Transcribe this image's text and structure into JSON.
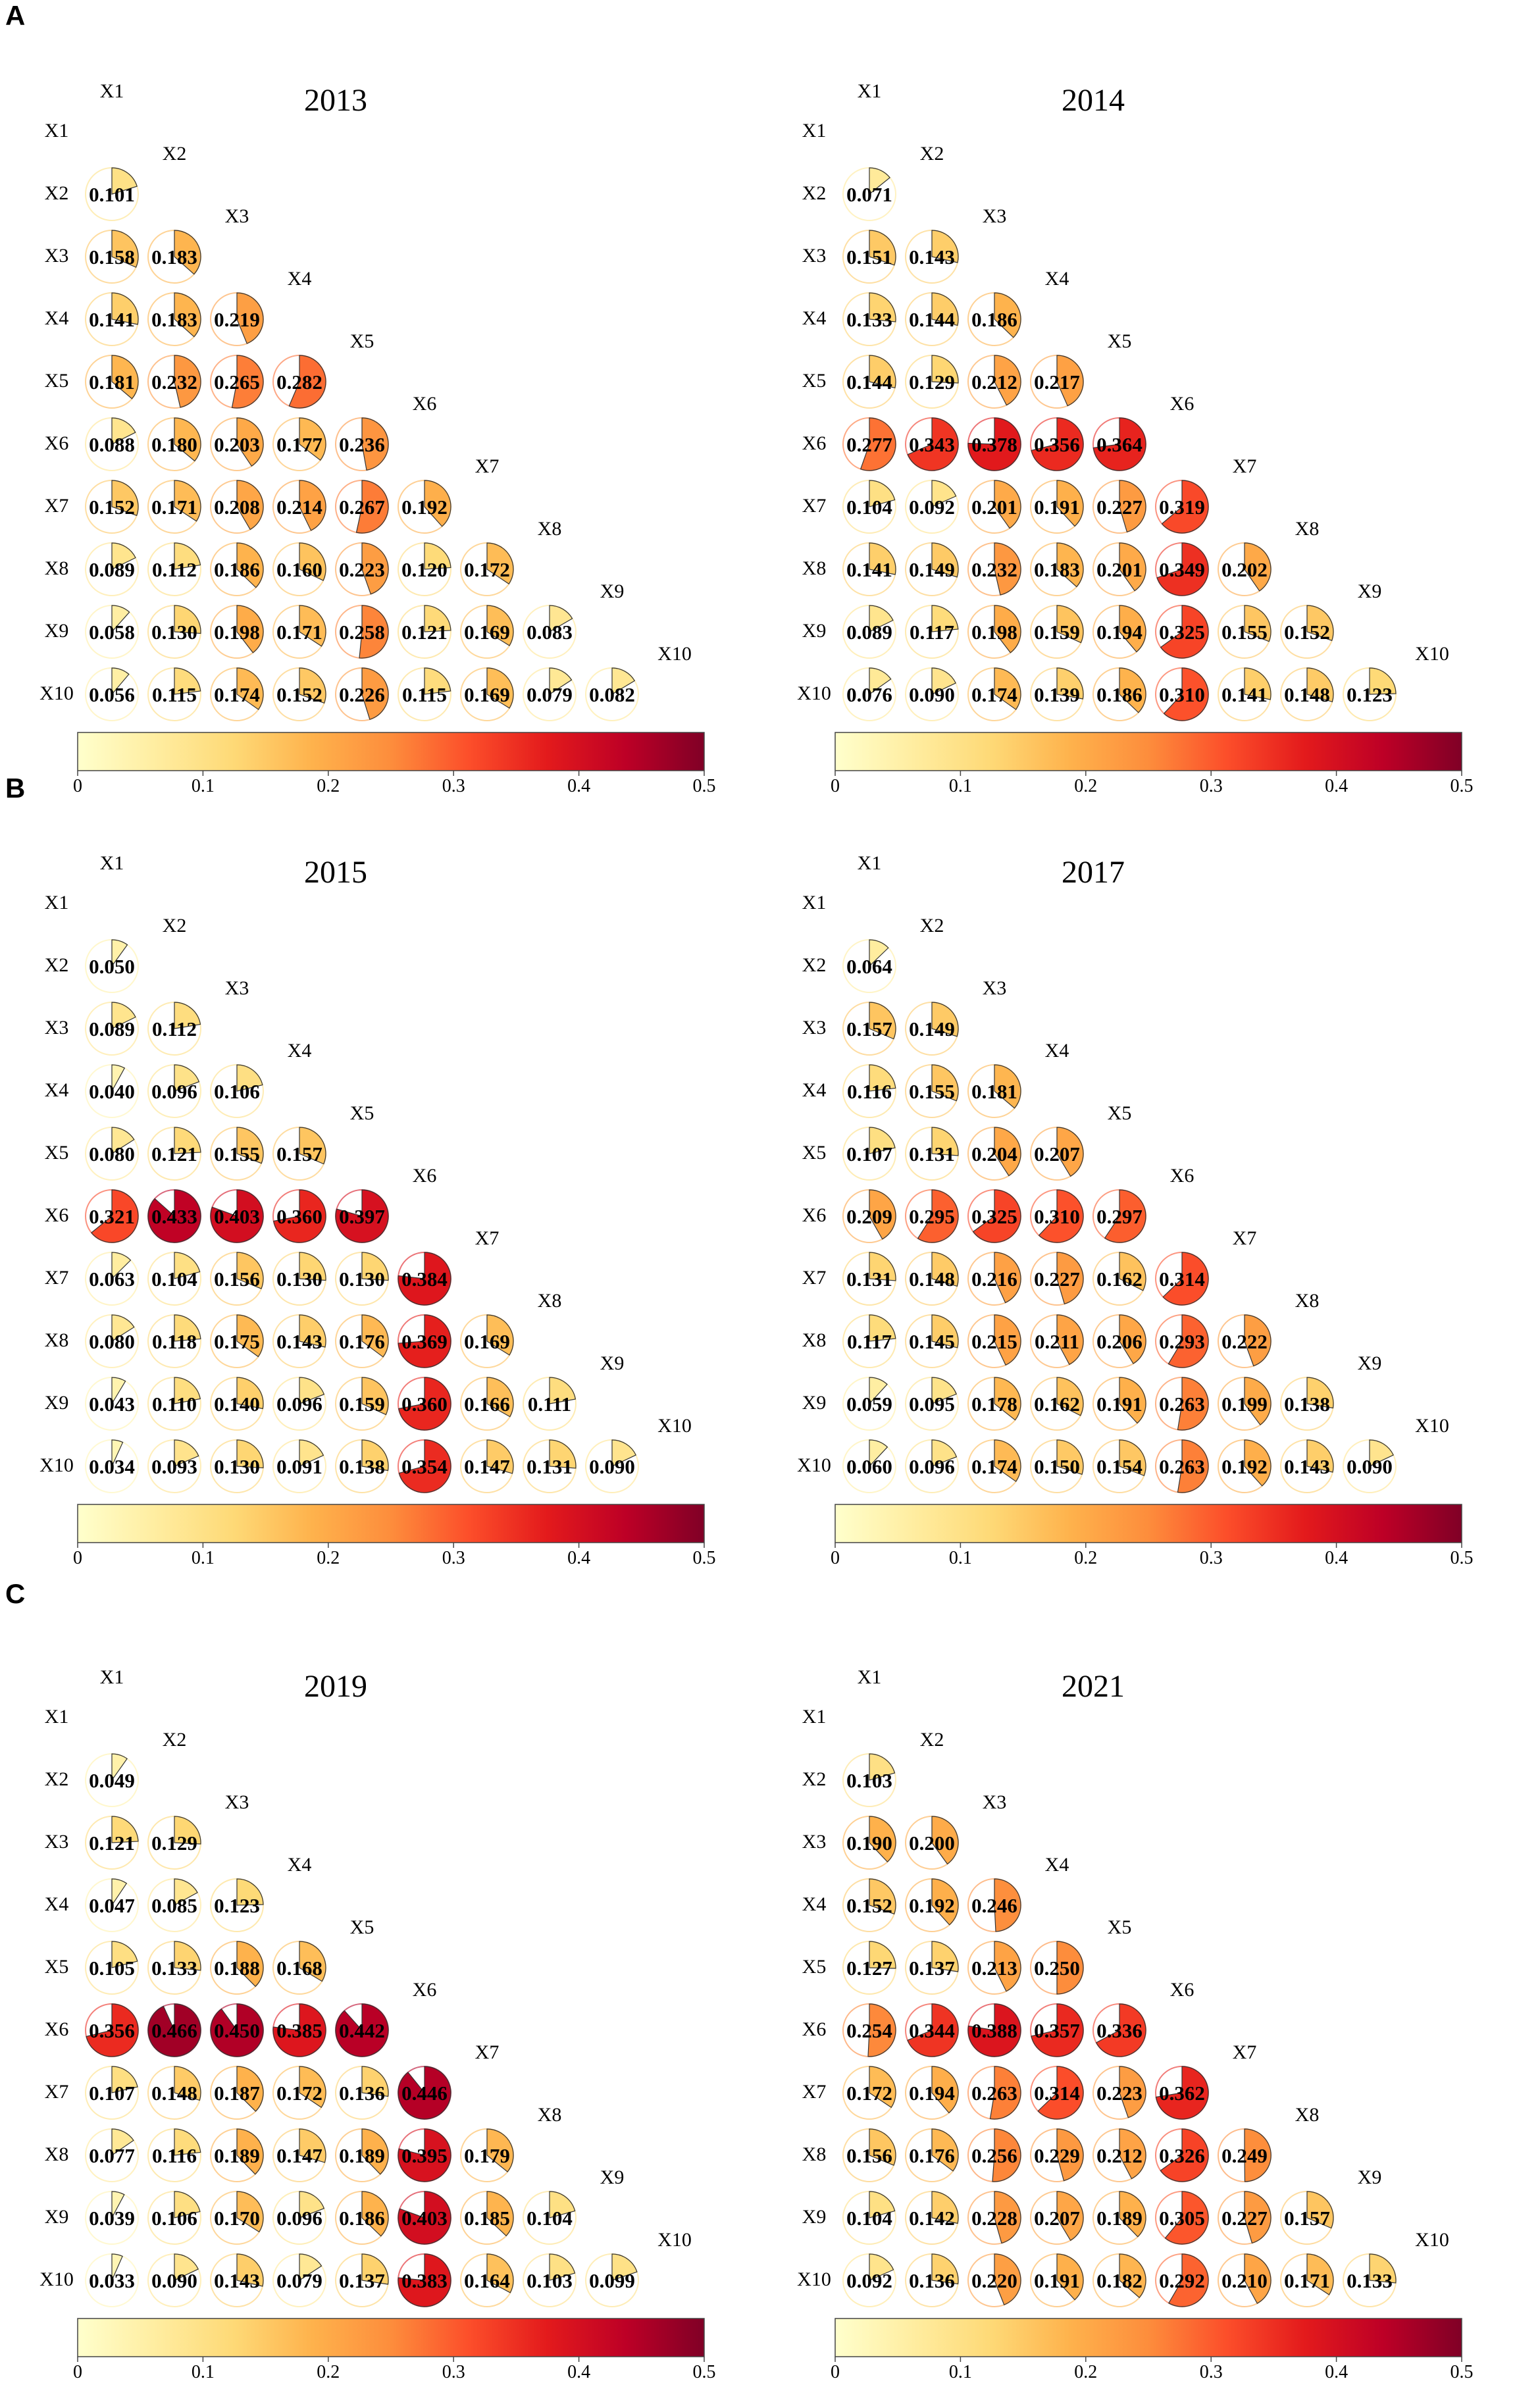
{
  "panel_letters": [
    "A",
    "B",
    "C"
  ],
  "colorbar": {
    "min": 0,
    "max": 0.5,
    "ticks": [
      "0",
      "0.1",
      "0.2",
      "0.3",
      "0.4",
      "0.5"
    ],
    "colors": [
      "#ffffcc",
      "#ffeda0",
      "#fed976",
      "#feb24c",
      "#fd8d3c",
      "#fc4e2a",
      "#e31a1c",
      "#bd0026",
      "#800026"
    ]
  },
  "variables": [
    "X1",
    "X2",
    "X3",
    "X4",
    "X5",
    "X6",
    "X7",
    "X8",
    "X9",
    "X10"
  ],
  "chart_data": [
    {
      "type": "heatmap",
      "title": "2013",
      "variables": [
        "X1",
        "X2",
        "X3",
        "X4",
        "X5",
        "X6",
        "X7",
        "X8",
        "X9",
        "X10"
      ],
      "matrix": [
        [
          "0.101"
        ],
        [
          "0.158",
          "0.183"
        ],
        [
          "0.141",
          "0.183",
          "0.219"
        ],
        [
          "0.181",
          "0.232",
          "0.265",
          "0.282"
        ],
        [
          "0.088",
          "0.180",
          "0.203",
          "0.177",
          "0.236"
        ],
        [
          "0.152",
          "0.171",
          "0.208",
          "0.214",
          "0.267",
          "0.192"
        ],
        [
          "0.089",
          "0.112",
          "0.186",
          "0.160",
          "0.223",
          "0.120",
          "0.172"
        ],
        [
          "0.058",
          "0.130",
          "0.198",
          "0.171",
          "0.258",
          "0.121",
          "0.169",
          "0.083"
        ],
        [
          "0.056",
          "0.115",
          "0.174",
          "0.152",
          "0.226",
          "0.115",
          "0.169",
          "0.079",
          "0.082"
        ]
      ]
    },
    {
      "type": "heatmap",
      "title": "2014",
      "variables": [
        "X1",
        "X2",
        "X3",
        "X4",
        "X5",
        "X6",
        "X7",
        "X8",
        "X9",
        "X10"
      ],
      "matrix": [
        [
          "0.071"
        ],
        [
          "0.151",
          "0.143"
        ],
        [
          "0.133",
          "0.144",
          "0.186"
        ],
        [
          "0.144",
          "0.129",
          "0.212",
          "0.217"
        ],
        [
          "0.277",
          "0.343",
          "0.378",
          "0.356",
          "0.364"
        ],
        [
          "0.104",
          "0.092",
          "0.201",
          "0.191",
          "0.227",
          "0.319"
        ],
        [
          "0.141",
          "0.149",
          "0.232",
          "0.183",
          "0.201",
          "0.349",
          "0.202"
        ],
        [
          "0.089",
          "0.117",
          "0.198",
          "0.159",
          "0.194",
          "0.325",
          "0.155",
          "0.152"
        ],
        [
          "0.076",
          "0.090",
          "0.174",
          "0.139",
          "0.186",
          "0.310",
          "0.141",
          "0.148",
          "0.123"
        ]
      ]
    },
    {
      "type": "heatmap",
      "title": "2015",
      "variables": [
        "X1",
        "X2",
        "X3",
        "X4",
        "X5",
        "X6",
        "X7",
        "X8",
        "X9",
        "X10"
      ],
      "matrix": [
        [
          "0.050"
        ],
        [
          "0.089",
          "0.112"
        ],
        [
          "0.040",
          "0.096",
          "0.106"
        ],
        [
          "0.080",
          "0.121",
          "0.155",
          "0.157"
        ],
        [
          "0.321",
          "0.433",
          "0.403",
          "0.360",
          "0.397"
        ],
        [
          "0.063",
          "0.104",
          "0.156",
          "0.130",
          "0.130",
          "0.384"
        ],
        [
          "0.080",
          "0.118",
          "0.175",
          "0.143",
          "0.176",
          "0.369",
          "0.169"
        ],
        [
          "0.043",
          "0.110",
          "0.140",
          "0.096",
          "0.159",
          "0.360",
          "0.166",
          "0.111"
        ],
        [
          "0.034",
          "0.093",
          "0.130",
          "0.091",
          "0.138",
          "0.354",
          "0.147",
          "0.131",
          "0.090"
        ]
      ]
    },
    {
      "type": "heatmap",
      "title": "2017",
      "variables": [
        "X1",
        "X2",
        "X3",
        "X4",
        "X5",
        "X6",
        "X7",
        "X8",
        "X9",
        "X10"
      ],
      "matrix": [
        [
          "0.064"
        ],
        [
          "0.157",
          "0.149"
        ],
        [
          "0.116",
          "0.155",
          "0.181"
        ],
        [
          "0.107",
          "0.131",
          "0.204",
          "0.207"
        ],
        [
          "0.209",
          "0.295",
          "0.325",
          "0.310",
          "0.297"
        ],
        [
          "0.131",
          "0.148",
          "0.216",
          "0.227",
          "0.162",
          "0.314"
        ],
        [
          "0.117",
          "0.145",
          "0.215",
          "0.211",
          "0.206",
          "0.293",
          "0.222"
        ],
        [
          "0.059",
          "0.095",
          "0.178",
          "0.162",
          "0.191",
          "0.263",
          "0.199",
          "0.138"
        ],
        [
          "0.060",
          "0.096",
          "0.174",
          "0.150",
          "0.154",
          "0.263",
          "0.192",
          "0.143",
          "0.090"
        ]
      ]
    },
    {
      "type": "heatmap",
      "title": "2019",
      "variables": [
        "X1",
        "X2",
        "X3",
        "X4",
        "X5",
        "X6",
        "X7",
        "X8",
        "X9",
        "X10"
      ],
      "matrix": [
        [
          "0.049"
        ],
        [
          "0.121",
          "0.129"
        ],
        [
          "0.047",
          "0.085",
          "0.123"
        ],
        [
          "0.105",
          "0.133",
          "0.188",
          "0.168"
        ],
        [
          "0.356",
          "0.466",
          "0.450",
          "0.385",
          "0.442"
        ],
        [
          "0.107",
          "0.148",
          "0.187",
          "0.172",
          "0.136",
          "0.446"
        ],
        [
          "0.077",
          "0.116",
          "0.189",
          "0.147",
          "0.189",
          "0.395",
          "0.179"
        ],
        [
          "0.039",
          "0.106",
          "0.170",
          "0.096",
          "0.186",
          "0.403",
          "0.185",
          "0.104"
        ],
        [
          "0.033",
          "0.090",
          "0.143",
          "0.079",
          "0.137",
          "0.383",
          "0.164",
          "0.103",
          "0.099"
        ]
      ]
    },
    {
      "type": "heatmap",
      "title": "2021",
      "variables": [
        "X1",
        "X2",
        "X3",
        "X4",
        "X5",
        "X6",
        "X7",
        "X8",
        "X9",
        "X10"
      ],
      "matrix": [
        [
          "0.103"
        ],
        [
          "0.190",
          "0.200"
        ],
        [
          "0.152",
          "0.192",
          "0.246"
        ],
        [
          "0.127",
          "0.137",
          "0.213",
          "0.250"
        ],
        [
          "0.254",
          "0.344",
          "0.388",
          "0.357",
          "0.336"
        ],
        [
          "0.172",
          "0.194",
          "0.263",
          "0.314",
          "0.223",
          "0.362"
        ],
        [
          "0.156",
          "0.176",
          "0.256",
          "0.229",
          "0.212",
          "0.326",
          "0.249"
        ],
        [
          "0.104",
          "0.142",
          "0.228",
          "0.207",
          "0.189",
          "0.305",
          "0.227",
          "0.157"
        ],
        [
          "0.092",
          "0.136",
          "0.220",
          "0.191",
          "0.182",
          "0.292",
          "0.210",
          "0.171",
          "0.133"
        ]
      ]
    }
  ]
}
